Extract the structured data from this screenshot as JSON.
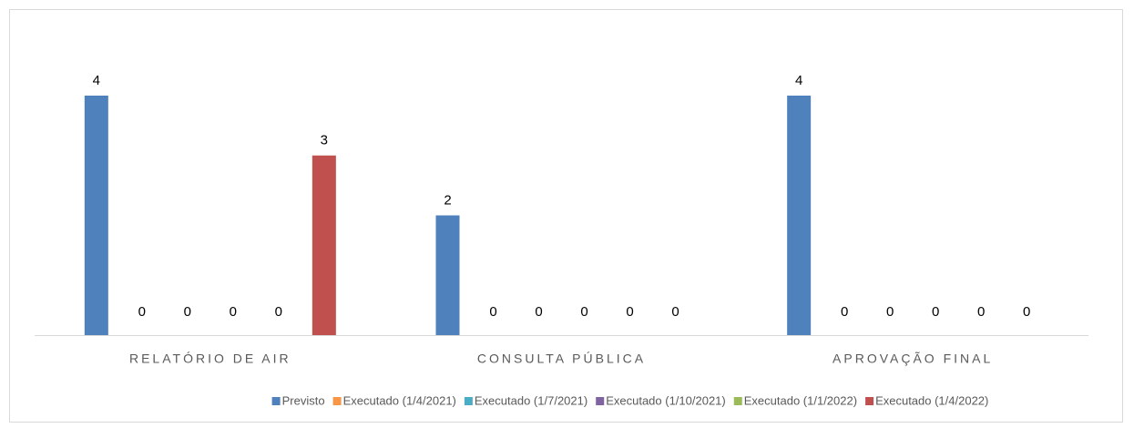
{
  "chart_data": {
    "type": "bar",
    "categories": [
      "RELATÓRIO DE AIR",
      "CONSULTA PÚBLICA",
      "APROVAÇÃO FINAL"
    ],
    "series": [
      {
        "name": "Previsto",
        "color": "#4f81bd",
        "values": [
          4,
          2,
          4
        ]
      },
      {
        "name": "Executado (1/4/2021)",
        "color": "#f79646",
        "values": [
          0,
          0,
          0
        ]
      },
      {
        "name": "Executado (1/7/2021)",
        "color": "#4bacc6",
        "values": [
          0,
          0,
          0
        ]
      },
      {
        "name": "Executado (1/10/2021)",
        "color": "#8064a2",
        "values": [
          0,
          0,
          0
        ]
      },
      {
        "name": "Executado (1/1/2022)",
        "color": "#9bbb59",
        "values": [
          0,
          0,
          0
        ]
      },
      {
        "name": "Executado (1/4/2022)",
        "color": "#c0504d",
        "values": [
          3,
          0,
          0
        ]
      }
    ],
    "legend": "bottom"
  }
}
